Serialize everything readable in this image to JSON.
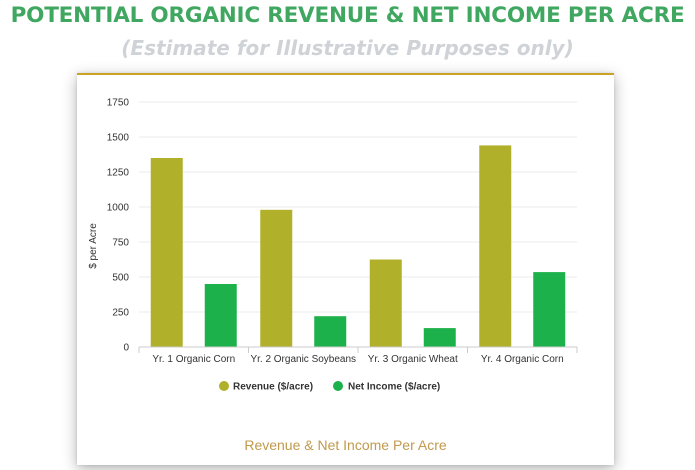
{
  "title": "POTENTIAL ORGANIC REVENUE & NET INCOME PER ACRE",
  "subtitle": "(Estimate for Illustrative Purposes only)",
  "caption": "Revenue & Net Income Per Acre",
  "chart_data": {
    "type": "bar",
    "categories": [
      "Yr. 1 Organic Corn",
      "Yr. 2 Organic Soybeans",
      "Yr. 3 Organic Wheat",
      "Yr. 4 Organic Corn"
    ],
    "series": [
      {
        "name": "Revenue ($/acre)",
        "color": "#b0b02b",
        "values": [
          1350,
          980,
          625,
          1440
        ]
      },
      {
        "name": "Net Income ($/acre)",
        "color": "#1db14b",
        "values": [
          450,
          220,
          135,
          535
        ]
      }
    ],
    "ylabel": "$ per Acre",
    "xlabel": "",
    "ylim": [
      0,
      1750
    ],
    "yticks": [
      "0",
      "250",
      "500",
      "750",
      "1000",
      "1250",
      "1500",
      "1750"
    ],
    "grid": true,
    "legend_position": "bottom"
  }
}
